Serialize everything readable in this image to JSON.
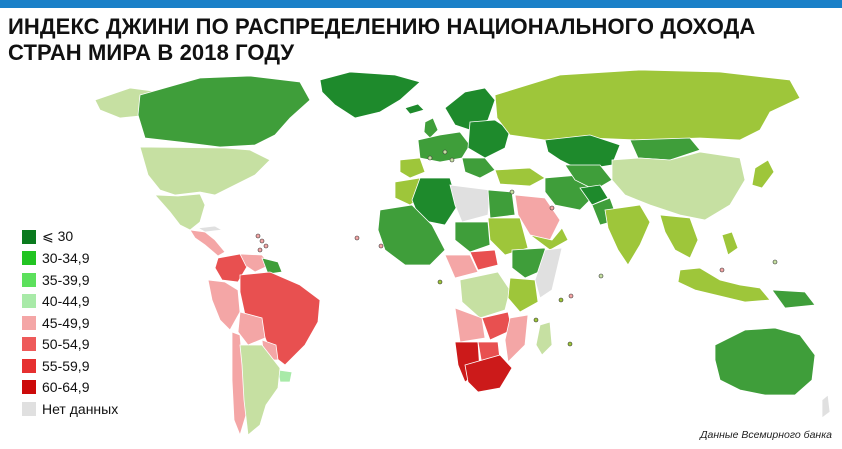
{
  "header": {
    "title": "ИНДЕКС ДЖИНИ ПО РАСПРЕДЕЛЕНИЮ НАЦИОНАЛЬНОГО ДОХОДА СТРАН МИРА В 2018 ГОДУ",
    "accent_color": "#1a80c8"
  },
  "legend": {
    "items": [
      {
        "label": "⩽ 30",
        "color": "#0a7a1e"
      },
      {
        "label": "30-34,9",
        "color": "#22c422"
      },
      {
        "label": "35-39,9",
        "color": "#5ce05c"
      },
      {
        "label": "40-44,9",
        "color": "#a8eaa8"
      },
      {
        "label": "45-49,9",
        "color": "#f4a6a6"
      },
      {
        "label": "50-54,9",
        "color": "#ee5a5a"
      },
      {
        "label": "55-59,9",
        "color": "#e63030"
      },
      {
        "label": "60-64,9",
        "color": "#cc0a0a"
      },
      {
        "label": "Нет данных",
        "color": "#e0e0e0"
      }
    ]
  },
  "map_colors": {
    "dark_green": "#1e8a2c",
    "green": "#3f9e3a",
    "light_olive": "#9ec63a",
    "pale_green": "#c6e0a2",
    "pink": "#f4a6a6",
    "red": "#e85050",
    "dark_red": "#cc1a1a",
    "no_data": "#e0e0e0"
  },
  "source": "Данные Всемирного банка"
}
